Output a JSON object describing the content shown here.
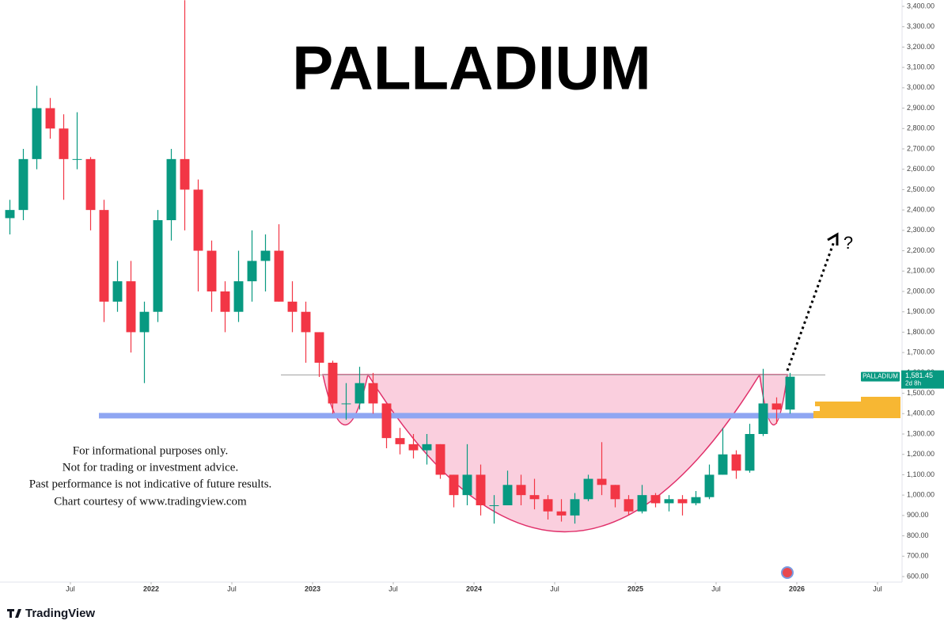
{
  "chart_data": {
    "type": "candlestick",
    "title": "PALLADIUM",
    "symbol": "PALLADIUM",
    "last_price": {
      "value": 1581.45,
      "label": "1,581.45"
    },
    "countdown": "2d 8h",
    "annotation": "?",
    "disclaimer": [
      "For informational purposes only.",
      "Not for trading or investment advice.",
      "Past performance is not indicative of future results.",
      "Chart courtesy of www.tradingview.com"
    ],
    "logo": "TradingView",
    "up_color": "#089981",
    "down_color": "#f23645",
    "levels": {
      "resistance": 1590,
      "support": 1390
    },
    "x": [
      "2021-02",
      "2021-03",
      "2021-04",
      "2021-05",
      "2021-06",
      "2021-07",
      "2021-08",
      "2021-09",
      "2021-10",
      "2021-11",
      "2021-12",
      "2022-01",
      "2022-02",
      "2022-03",
      "2022-04",
      "2022-05",
      "2022-06",
      "2022-07",
      "2022-08",
      "2022-09",
      "2022-10",
      "2022-11",
      "2022-12",
      "2023-01",
      "2023-02",
      "2023-03",
      "2023-04",
      "2023-05",
      "2023-06",
      "2023-07",
      "2023-08",
      "2023-09",
      "2023-10",
      "2023-11",
      "2023-12",
      "2024-01",
      "2024-02",
      "2024-03",
      "2024-04",
      "2024-05",
      "2024-06",
      "2024-07",
      "2024-08",
      "2024-09",
      "2024-10",
      "2024-11",
      "2024-12",
      "2025-01",
      "2025-02",
      "2025-03",
      "2025-04",
      "2025-05",
      "2025-06",
      "2025-07",
      "2025-08",
      "2025-09",
      "2025-10",
      "2025-11",
      "2025-12"
    ],
    "open": [
      2360,
      2400,
      2650,
      2900,
      2800,
      2650,
      2650,
      2400,
      1950,
      2050,
      1800,
      1900,
      2350,
      2650,
      2500,
      2200,
      2000,
      1900,
      2050,
      2150,
      2200,
      1950,
      1900,
      1800,
      1650,
      1450,
      1450,
      1550,
      1450,
      1280,
      1250,
      1220,
      1250,
      1100,
      1000,
      1100,
      950,
      950,
      1050,
      1000,
      980,
      920,
      900,
      980,
      1080,
      1050,
      980,
      920,
      1000,
      960,
      980,
      960,
      990,
      1100,
      1200,
      1120,
      1300,
      1450,
      1420
    ],
    "high": [
      2450,
      2700,
      3010,
      2950,
      2870,
      2880,
      2660,
      2450,
      2150,
      2150,
      1950,
      2400,
      2700,
      3430,
      2550,
      2250,
      2050,
      2200,
      2300,
      2280,
      2330,
      2050,
      1950,
      1800,
      1660,
      1550,
      1630,
      1600,
      1450,
      1330,
      1300,
      1300,
      1250,
      1100,
      1250,
      1150,
      1000,
      1120,
      1100,
      1080,
      1000,
      980,
      1010,
      1100,
      1260,
      1050,
      1000,
      1050,
      1010,
      1000,
      1000,
      1020,
      1150,
      1330,
      1220,
      1350,
      1620,
      1480,
      1600
    ],
    "low": [
      2280,
      2350,
      2600,
      2750,
      2450,
      2600,
      2300,
      1850,
      1900,
      1700,
      1550,
      1850,
      2250,
      2300,
      2000,
      1900,
      1800,
      1850,
      1950,
      2000,
      1950,
      1800,
      1650,
      1580,
      1400,
      1370,
      1420,
      1400,
      1230,
      1200,
      1180,
      1150,
      1080,
      940,
      950,
      900,
      860,
      950,
      950,
      930,
      880,
      870,
      860,
      970,
      1000,
      940,
      900,
      910,
      940,
      920,
      900,
      950,
      980,
      1100,
      1080,
      1110,
      1290,
      1350,
      1400
    ],
    "close": [
      2400,
      2650,
      2900,
      2800,
      2650,
      2650,
      2400,
      1950,
      2050,
      1800,
      1900,
      2350,
      2650,
      2500,
      2200,
      2000,
      1900,
      2050,
      2150,
      2200,
      1950,
      1900,
      1800,
      1650,
      1450,
      1450,
      1550,
      1450,
      1280,
      1250,
      1220,
      1250,
      1100,
      1000,
      1100,
      950,
      950,
      1050,
      1000,
      980,
      920,
      900,
      980,
      1080,
      1050,
      980,
      920,
      1000,
      960,
      980,
      960,
      990,
      1100,
      1200,
      1120,
      1300,
      1450,
      1420,
      1581.45
    ],
    "xlim": [
      "2021-02",
      "2026-09"
    ],
    "xticks": [
      {
        "value": "2021-07",
        "label": "Jul"
      },
      {
        "value": "2022-01",
        "label": "2022"
      },
      {
        "value": "2022-07",
        "label": "Jul"
      },
      {
        "value": "2023-01",
        "label": "2023"
      },
      {
        "value": "2023-07",
        "label": "Jul"
      },
      {
        "value": "2024-01",
        "label": "2024"
      },
      {
        "value": "2024-07",
        "label": "Jul"
      },
      {
        "value": "2025-01",
        "label": "2025"
      },
      {
        "value": "2025-07",
        "label": "Jul"
      },
      {
        "value": "2026-01",
        "label": "2026"
      },
      {
        "value": "2026-07",
        "label": "Jul"
      }
    ],
    "ylim": [
      600,
      3400
    ],
    "yticks": [
      {
        "value": 600,
        "label": "600.00"
      },
      {
        "value": 700,
        "label": "700.00"
      },
      {
        "value": 800,
        "label": "800.00"
      },
      {
        "value": 900,
        "label": "900.00"
      },
      {
        "value": 1000,
        "label": "1,000.00"
      },
      {
        "value": 1100,
        "label": "1,100.00"
      },
      {
        "value": 1200,
        "label": "1,200.00"
      },
      {
        "value": 1300,
        "label": "1,300.00"
      },
      {
        "value": 1400,
        "label": "1,400.00"
      },
      {
        "value": 1500,
        "label": "1,500.00"
      },
      {
        "value": 1600,
        "label": "1,600.00"
      },
      {
        "value": 1700,
        "label": "1,700.00"
      },
      {
        "value": 1800,
        "label": "1,800.00"
      },
      {
        "value": 1900,
        "label": "1,900.00"
      },
      {
        "value": 2000,
        "label": "2,000.00"
      },
      {
        "value": 2100,
        "label": "2,100.00"
      },
      {
        "value": 2200,
        "label": "2,200.00"
      },
      {
        "value": 2300,
        "label": "2,300.00"
      },
      {
        "value": 2400,
        "label": "2,400.00"
      },
      {
        "value": 2500,
        "label": "2,500.00"
      },
      {
        "value": 2600,
        "label": "2,600.00"
      },
      {
        "value": 2700,
        "label": "2,700.00"
      },
      {
        "value": 2800,
        "label": "2,800.00"
      },
      {
        "value": 2900,
        "label": "2,900.00"
      },
      {
        "value": 3000,
        "label": "3,000.00"
      },
      {
        "value": 3100,
        "label": "3,100.00"
      },
      {
        "value": 3200,
        "label": "3,200.00"
      },
      {
        "value": 3300,
        "label": "3,300.00"
      },
      {
        "value": 3400,
        "label": "3,400.00"
      }
    ]
  }
}
